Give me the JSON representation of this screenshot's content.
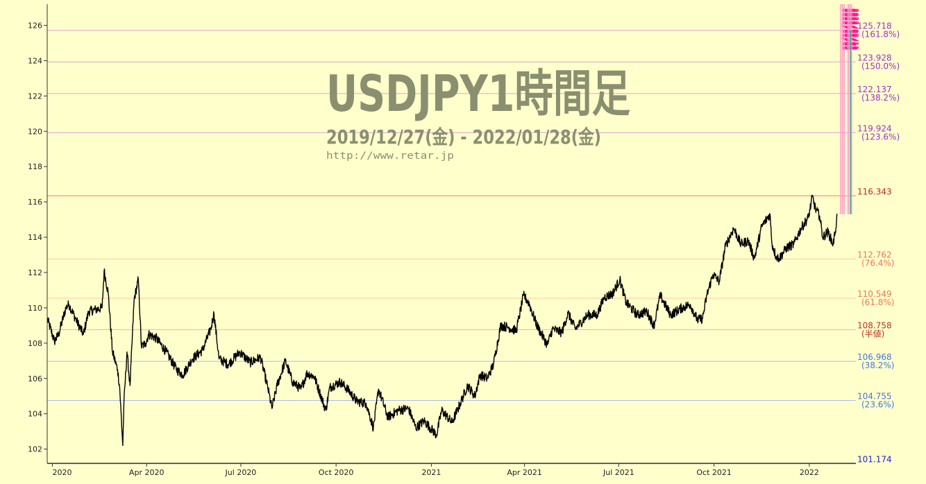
{
  "chart_data": {
    "type": "line",
    "title": "USDJPY1時間足",
    "subtitle": "2019/12/27(金) - 2022/01/28(金)",
    "url": "http://www.retar.jp",
    "xlabel": "",
    "ylabel": "",
    "ylim": [
      101.2,
      127.2
    ],
    "xlim": [
      "2019-12-27",
      "2022-02-15"
    ],
    "grid": false,
    "y_ticks": [
      "102",
      "104",
      "106",
      "108",
      "110",
      "112",
      "114",
      "116",
      "118",
      "120",
      "122",
      "124",
      "126"
    ],
    "x_ticks": [
      {
        "label": "2020",
        "date": "2020-01-01"
      },
      {
        "label": "Apr 2020",
        "date": "2020-04-01"
      },
      {
        "label": "Jul 2020",
        "date": "2020-07-01"
      },
      {
        "label": "Oct 2020",
        "date": "2020-10-01"
      },
      {
        "label": "2021",
        "date": "2021-01-01"
      },
      {
        "label": "Apr 2021",
        "date": "2021-04-01"
      },
      {
        "label": "Jul 2021",
        "date": "2021-07-01"
      },
      {
        "label": "Oct 2021",
        "date": "2021-10-01"
      },
      {
        "label": "2022",
        "date": "2022-01-01"
      }
    ],
    "series": [
      {
        "color": "#000000",
        "points": [
          [
            "2019-12-27",
            109.4
          ],
          [
            "2020-01-03",
            108.1
          ],
          [
            "2020-01-07",
            108.5
          ],
          [
            "2020-01-14",
            110.0
          ],
          [
            "2020-01-17",
            110.2
          ],
          [
            "2020-01-24",
            109.3
          ],
          [
            "2020-01-31",
            108.5
          ],
          [
            "2020-02-05",
            109.8
          ],
          [
            "2020-02-12",
            109.9
          ],
          [
            "2020-02-18",
            110.0
          ],
          [
            "2020-02-20",
            112.1
          ],
          [
            "2020-02-24",
            110.8
          ],
          [
            "2020-02-28",
            107.5
          ],
          [
            "2020-03-04",
            106.5
          ],
          [
            "2020-03-06",
            105.5
          ],
          [
            "2020-03-09",
            102.2
          ],
          [
            "2020-03-10",
            104.5
          ],
          [
            "2020-03-13",
            107.5
          ],
          [
            "2020-03-16",
            105.6
          ],
          [
            "2020-03-20",
            110.5
          ],
          [
            "2020-03-24",
            111.6
          ],
          [
            "2020-03-27",
            107.8
          ],
          [
            "2020-03-31",
            108.0
          ],
          [
            "2020-04-03",
            108.5
          ],
          [
            "2020-04-10",
            108.3
          ],
          [
            "2020-04-20",
            107.5
          ],
          [
            "2020-04-30",
            106.5
          ],
          [
            "2020-05-06",
            106.2
          ],
          [
            "2020-05-15",
            107.1
          ],
          [
            "2020-05-25",
            107.6
          ],
          [
            "2020-06-02",
            108.8
          ],
          [
            "2020-06-05",
            109.7
          ],
          [
            "2020-06-10",
            107.1
          ],
          [
            "2020-06-19",
            106.8
          ],
          [
            "2020-06-30",
            107.5
          ],
          [
            "2020-07-10",
            106.9
          ],
          [
            "2020-07-20",
            107.2
          ],
          [
            "2020-07-27",
            105.5
          ],
          [
            "2020-07-31",
            104.3
          ],
          [
            "2020-08-05",
            105.6
          ],
          [
            "2020-08-13",
            107.0
          ],
          [
            "2020-08-20",
            105.8
          ],
          [
            "2020-08-28",
            105.4
          ],
          [
            "2020-09-03",
            106.3
          ],
          [
            "2020-09-10",
            106.1
          ],
          [
            "2020-09-21",
            104.2
          ],
          [
            "2020-09-25",
            105.5
          ],
          [
            "2020-10-05",
            105.8
          ],
          [
            "2020-10-12",
            105.4
          ],
          [
            "2020-10-21",
            104.7
          ],
          [
            "2020-10-30",
            104.6
          ],
          [
            "2020-11-06",
            103.2
          ],
          [
            "2020-11-11",
            105.4
          ],
          [
            "2020-11-20",
            103.8
          ],
          [
            "2020-11-30",
            104.2
          ],
          [
            "2020-12-10",
            104.3
          ],
          [
            "2020-12-17",
            103.2
          ],
          [
            "2020-12-25",
            103.6
          ],
          [
            "2021-01-06",
            102.8
          ],
          [
            "2021-01-11",
            104.2
          ],
          [
            "2021-01-21",
            103.5
          ],
          [
            "2021-01-29",
            104.6
          ],
          [
            "2021-02-05",
            105.6
          ],
          [
            "2021-02-12",
            105.0
          ],
          [
            "2021-02-17",
            106.2
          ],
          [
            "2021-02-24",
            106.0
          ],
          [
            "2021-03-02",
            106.8
          ],
          [
            "2021-03-09",
            109.0
          ],
          [
            "2021-03-16",
            108.9
          ],
          [
            "2021-03-24",
            108.7
          ],
          [
            "2021-03-31",
            110.7
          ],
          [
            "2021-04-05",
            110.3
          ],
          [
            "2021-04-13",
            109.0
          ],
          [
            "2021-04-23",
            107.9
          ],
          [
            "2021-04-28",
            108.8
          ],
          [
            "2021-05-07",
            108.6
          ],
          [
            "2021-05-13",
            109.7
          ],
          [
            "2021-05-20",
            108.8
          ],
          [
            "2021-06-01",
            109.6
          ],
          [
            "2021-06-10",
            109.6
          ],
          [
            "2021-06-17",
            110.6
          ],
          [
            "2021-06-25",
            110.8
          ],
          [
            "2021-07-02",
            111.6
          ],
          [
            "2021-07-08",
            110.3
          ],
          [
            "2021-07-19",
            109.6
          ],
          [
            "2021-07-28",
            109.8
          ],
          [
            "2021-08-04",
            109.0
          ],
          [
            "2021-08-10",
            110.7
          ],
          [
            "2021-08-20",
            109.6
          ],
          [
            "2021-08-31",
            110.0
          ],
          [
            "2021-09-08",
            110.2
          ],
          [
            "2021-09-15",
            109.3
          ],
          [
            "2021-09-20",
            109.4
          ],
          [
            "2021-09-24",
            110.7
          ],
          [
            "2021-09-30",
            111.9
          ],
          [
            "2021-10-06",
            111.5
          ],
          [
            "2021-10-12",
            113.5
          ],
          [
            "2021-10-20",
            114.5
          ],
          [
            "2021-10-27",
            113.6
          ],
          [
            "2021-11-03",
            113.8
          ],
          [
            "2021-11-09",
            112.8
          ],
          [
            "2021-11-16",
            114.6
          ],
          [
            "2021-11-24",
            115.3
          ],
          [
            "2021-11-26",
            113.6
          ],
          [
            "2021-11-30",
            112.9
          ],
          [
            "2021-12-03",
            112.8
          ],
          [
            "2021-12-10",
            113.4
          ],
          [
            "2021-12-17",
            113.6
          ],
          [
            "2021-12-24",
            114.5
          ],
          [
            "2021-12-31",
            115.1
          ],
          [
            "2022-01-04",
            116.3
          ],
          [
            "2022-01-07",
            115.6
          ],
          [
            "2022-01-11",
            115.2
          ],
          [
            "2022-01-14",
            114.0
          ],
          [
            "2022-01-19",
            114.3
          ],
          [
            "2022-01-24",
            113.6
          ],
          [
            "2022-01-26",
            114.3
          ],
          [
            "2022-01-28",
            115.3
          ]
        ]
      }
    ],
    "levels": [
      {
        "value": 125.718,
        "label": "125.718",
        "sublabel": "(161.8%)",
        "color": "#9933cc",
        "line": "#dda0dd"
      },
      {
        "value": 123.928,
        "label": "123.928",
        "sublabel": "(150.0%)",
        "color": "#9933cc",
        "line": "#dda0dd"
      },
      {
        "value": 122.137,
        "label": "122.137",
        "sublabel": "(138.2%)",
        "color": "#9933cc",
        "line": "#dda0dd"
      },
      {
        "value": 119.924,
        "label": "119.924",
        "sublabel": "(123.6%)",
        "color": "#9933cc",
        "line": "#dda0dd"
      },
      {
        "value": 116.343,
        "label": "116.343",
        "sublabel": "",
        "color": "#cc2222",
        "line": "#ff7777"
      },
      {
        "value": 112.762,
        "label": "112.762",
        "sublabel": "(76.4%)",
        "color": "#ee7755",
        "line": "#ffc8a0"
      },
      {
        "value": 110.549,
        "label": "110.549",
        "sublabel": "(61.8%)",
        "color": "#ee7755",
        "line": "#ffc8a0"
      },
      {
        "value": 108.758,
        "label": "108.758",
        "sublabel": "(半値)",
        "color": "#bb3322",
        "line": "#ffb0a0"
      },
      {
        "value": 106.968,
        "label": "106.968",
        "sublabel": "(38.2%)",
        "color": "#4477dd",
        "line": "#aabbee"
      },
      {
        "value": 104.755,
        "label": "104.755",
        "sublabel": "(23.6%)",
        "color": "#4477dd",
        "line": "#aabbee"
      },
      {
        "value": 101.174,
        "label": "101.174",
        "sublabel": "",
        "color": "#2222cc",
        "line": "#3333aa"
      }
    ],
    "vertical_markers": {
      "dates": [
        "2022-01-31",
        "2022-02-01",
        "2022-02-02",
        "2022-02-03",
        "2022-02-04",
        "2022-02-07",
        "2022-02-08",
        "2022-02-09",
        "2022-02-10",
        "2022-02-11"
      ],
      "line_color": "#ff99cc",
      "text_color": "#ff1493"
    },
    "projection_color": "#33aa88"
  }
}
